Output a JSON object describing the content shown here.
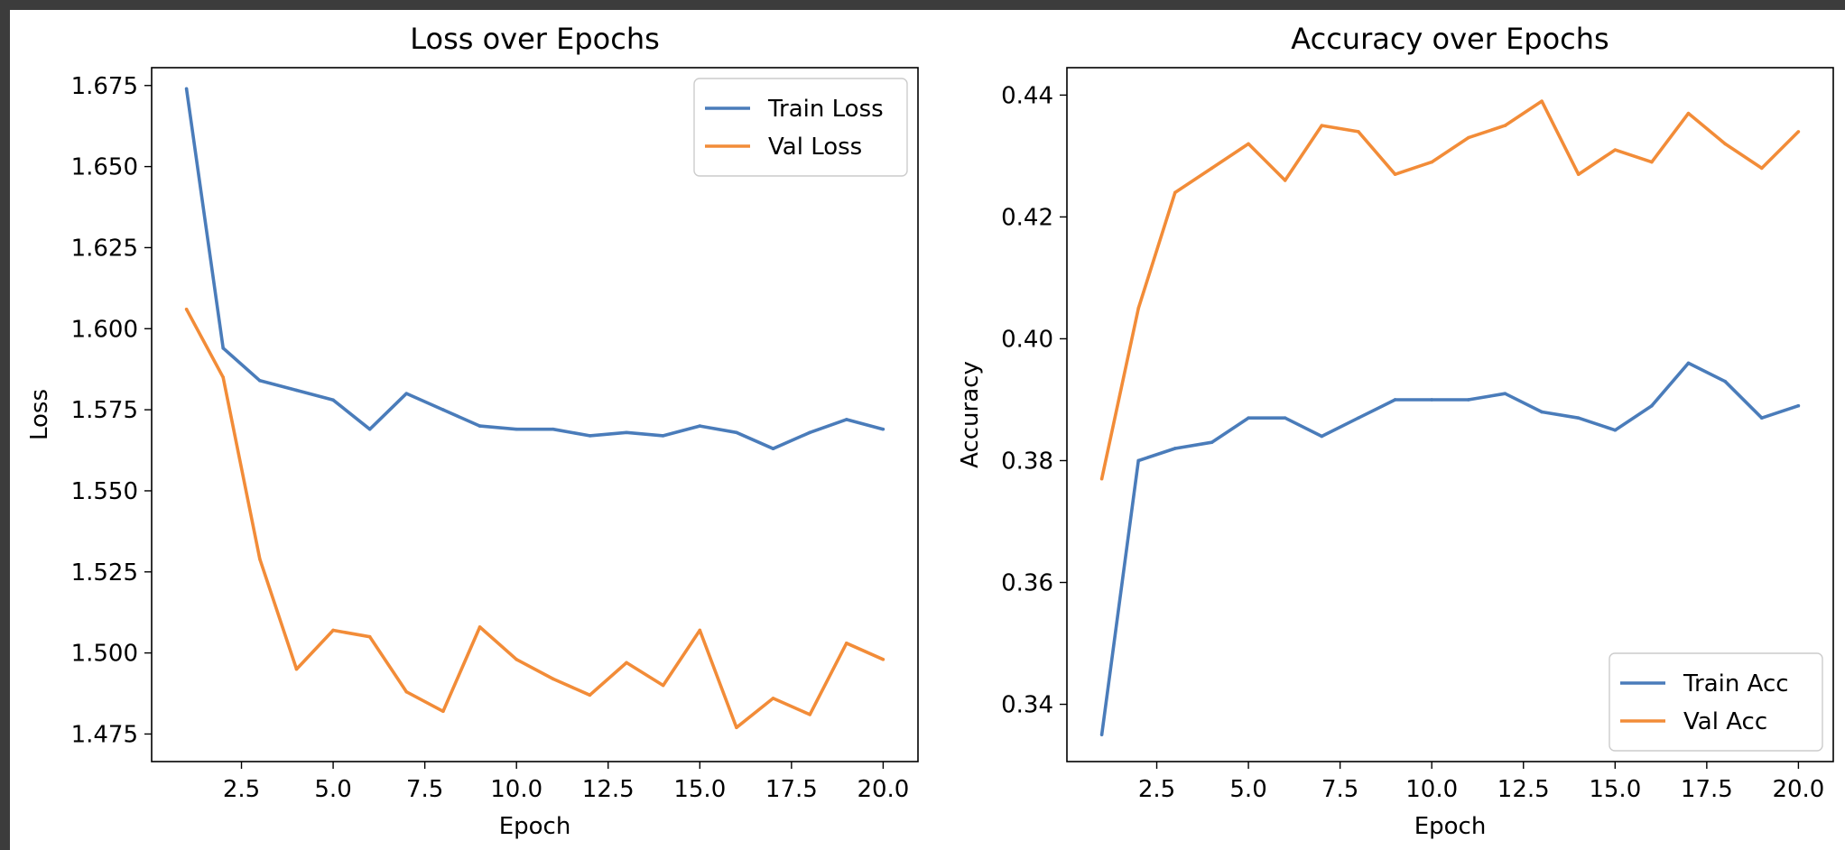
{
  "colors": {
    "train": "#4a7cba",
    "val": "#f28c38",
    "page_bg": "#3c3c3c",
    "figure_bg": "#ffffff"
  },
  "chart_data": [
    {
      "type": "line",
      "title": "Loss over Epochs",
      "xlabel": "Epoch",
      "ylabel": "Loss",
      "x": [
        1,
        2,
        3,
        4,
        5,
        6,
        7,
        8,
        9,
        10,
        11,
        12,
        13,
        14,
        15,
        16,
        17,
        18,
        19,
        20
      ],
      "xlim": [
        0.05,
        20.95
      ],
      "ylim": [
        1.4665,
        1.6805
      ],
      "xticks": [
        2.5,
        5.0,
        7.5,
        10.0,
        12.5,
        15.0,
        17.5,
        20.0
      ],
      "xtick_labels": [
        "2.5",
        "5.0",
        "7.5",
        "10.0",
        "12.5",
        "15.0",
        "17.5",
        "20.0"
      ],
      "yticks": [
        1.475,
        1.5,
        1.525,
        1.55,
        1.575,
        1.6,
        1.625,
        1.65,
        1.675
      ],
      "ytick_labels": [
        "1.475",
        "1.500",
        "1.525",
        "1.550",
        "1.575",
        "1.600",
        "1.625",
        "1.650",
        "1.675"
      ],
      "grid": false,
      "legend": "top-right",
      "series": [
        {
          "name": "Train Loss",
          "color": "#4a7cba",
          "values": [
            1.674,
            1.594,
            1.584,
            1.581,
            1.578,
            1.569,
            1.58,
            1.575,
            1.57,
            1.569,
            1.569,
            1.567,
            1.568,
            1.567,
            1.57,
            1.568,
            1.563,
            1.568,
            1.572,
            1.569
          ]
        },
        {
          "name": "Val Loss",
          "color": "#f28c38",
          "values": [
            1.606,
            1.585,
            1.529,
            1.495,
            1.507,
            1.505,
            1.488,
            1.482,
            1.508,
            1.498,
            1.492,
            1.487,
            1.497,
            1.49,
            1.507,
            1.477,
            1.486,
            1.481,
            1.503,
            1.498
          ]
        }
      ]
    },
    {
      "type": "line",
      "title": "Accuracy over Epochs",
      "xlabel": "Epoch",
      "ylabel": "Accuracy",
      "x": [
        1,
        2,
        3,
        4,
        5,
        6,
        7,
        8,
        9,
        10,
        11,
        12,
        13,
        14,
        15,
        16,
        17,
        18,
        19,
        20
      ],
      "xlim": [
        0.05,
        20.95
      ],
      "ylim": [
        0.3306,
        0.4445
      ],
      "xticks": [
        2.5,
        5.0,
        7.5,
        10.0,
        12.5,
        15.0,
        17.5,
        20.0
      ],
      "xtick_labels": [
        "2.5",
        "5.0",
        "7.5",
        "10.0",
        "12.5",
        "15.0",
        "17.5",
        "20.0"
      ],
      "yticks": [
        0.34,
        0.36,
        0.38,
        0.4,
        0.42,
        0.44
      ],
      "ytick_labels": [
        "0.34",
        "0.36",
        "0.38",
        "0.40",
        "0.42",
        "0.44"
      ],
      "grid": false,
      "legend": "bottom-right",
      "series": [
        {
          "name": "Train Acc",
          "color": "#4a7cba",
          "values": [
            0.335,
            0.38,
            0.382,
            0.383,
            0.387,
            0.387,
            0.384,
            0.387,
            0.39,
            0.39,
            0.39,
            0.391,
            0.388,
            0.387,
            0.385,
            0.389,
            0.396,
            0.393,
            0.387,
            0.389
          ]
        },
        {
          "name": "Val Acc",
          "color": "#f28c38",
          "values": [
            0.377,
            0.405,
            0.424,
            0.428,
            0.432,
            0.426,
            0.435,
            0.434,
            0.427,
            0.429,
            0.433,
            0.435,
            0.439,
            0.427,
            0.431,
            0.429,
            0.437,
            0.432,
            0.428,
            0.434
          ]
        }
      ]
    }
  ]
}
